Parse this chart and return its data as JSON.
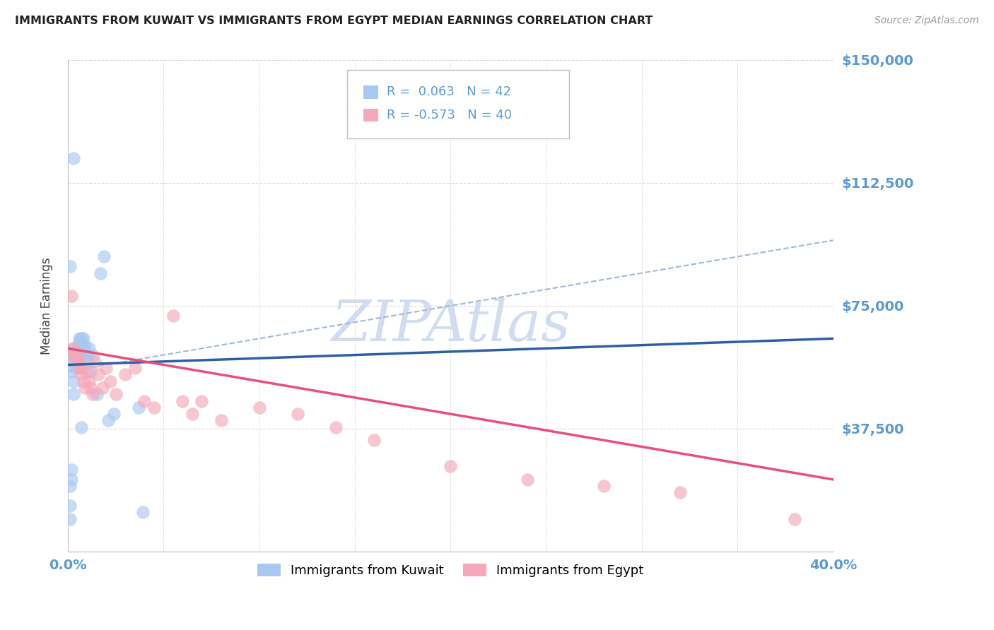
{
  "title": "IMMIGRANTS FROM KUWAIT VS IMMIGRANTS FROM EGYPT MEDIAN EARNINGS CORRELATION CHART",
  "source": "Source: ZipAtlas.com",
  "ylabel": "Median Earnings",
  "x_min": 0.0,
  "x_max": 0.4,
  "y_min": 0,
  "y_max": 150000,
  "yticks": [
    0,
    37500,
    75000,
    112500,
    150000
  ],
  "ytick_labels": [
    "",
    "$37,500",
    "$75,000",
    "$112,500",
    "$150,000"
  ],
  "xticks": [
    0.0,
    0.05,
    0.1,
    0.15,
    0.2,
    0.25,
    0.3,
    0.35,
    0.4
  ],
  "color_kuwait": "#A8C8F0",
  "color_egypt": "#F4A8B8",
  "color_kuwait_line": "#2E5FA3",
  "color_egypt_line": "#E8507A",
  "color_dashed": "#A0B8D8",
  "color_grid": "#C8C8C8",
  "color_ytick_label": "#5B9BD5",
  "color_xtick_label": "#5B9BD5",
  "watermark_text": "ZIPAtlas",
  "watermark_color": "#D0DCF0",
  "legend_label1": "Immigrants from Kuwait",
  "legend_label2": "Immigrants from Egypt",
  "kuwait_x": [
    0.001,
    0.001,
    0.001,
    0.002,
    0.002,
    0.002,
    0.002,
    0.003,
    0.003,
    0.003,
    0.003,
    0.004,
    0.004,
    0.004,
    0.005,
    0.005,
    0.005,
    0.006,
    0.006,
    0.006,
    0.007,
    0.007,
    0.007,
    0.008,
    0.008,
    0.009,
    0.009,
    0.01,
    0.01,
    0.011,
    0.012,
    0.013,
    0.015,
    0.017,
    0.019,
    0.021,
    0.024,
    0.007,
    0.037,
    0.039,
    0.001,
    0.003
  ],
  "kuwait_y": [
    10000,
    14000,
    20000,
    22000,
    25000,
    55000,
    58000,
    48000,
    52000,
    60000,
    62000,
    56000,
    58000,
    60000,
    58000,
    60000,
    62000,
    62000,
    64000,
    65000,
    60000,
    63000,
    65000,
    62000,
    65000,
    60000,
    63000,
    58000,
    60000,
    62000,
    55000,
    60000,
    48000,
    85000,
    90000,
    40000,
    42000,
    38000,
    44000,
    12000,
    87000,
    120000
  ],
  "egypt_x": [
    0.001,
    0.002,
    0.003,
    0.004,
    0.005,
    0.005,
    0.006,
    0.006,
    0.007,
    0.007,
    0.008,
    0.009,
    0.01,
    0.011,
    0.012,
    0.013,
    0.014,
    0.016,
    0.018,
    0.02,
    0.022,
    0.025,
    0.03,
    0.035,
    0.04,
    0.045,
    0.06,
    0.07,
    0.1,
    0.12,
    0.14,
    0.16,
    0.2,
    0.24,
    0.28,
    0.32,
    0.38,
    0.055,
    0.065,
    0.08
  ],
  "egypt_y": [
    60000,
    78000,
    62000,
    60000,
    58000,
    60000,
    56000,
    58000,
    54000,
    56000,
    52000,
    50000,
    55000,
    52000,
    50000,
    48000,
    58000,
    54000,
    50000,
    56000,
    52000,
    48000,
    54000,
    56000,
    46000,
    44000,
    46000,
    46000,
    44000,
    42000,
    38000,
    34000,
    26000,
    22000,
    20000,
    18000,
    10000,
    72000,
    42000,
    40000
  ],
  "kuwait_trend_x": [
    0.0,
    0.4
  ],
  "kuwait_trend_y": [
    57000,
    65000
  ],
  "egypt_trend_x": [
    0.0,
    0.4
  ],
  "egypt_trend_y": [
    62000,
    22000
  ],
  "dashed_trend_x": [
    0.0,
    0.4
  ],
  "dashed_trend_y": [
    55000,
    95000
  ]
}
